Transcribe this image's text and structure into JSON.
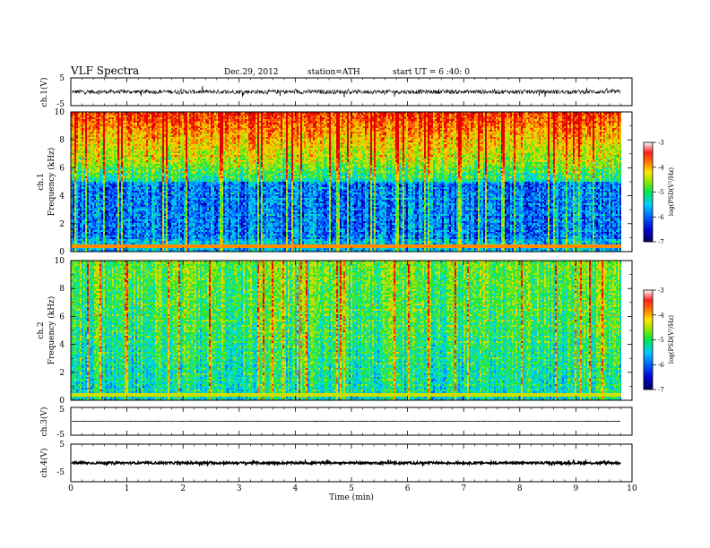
{
  "header": {
    "title": "VLF  Spectra",
    "date": "Dec.29, 2012",
    "station": "station=ATH",
    "start": "start  UT  =   6 :40: 0"
  },
  "chart_data": [
    {
      "type": "line",
      "panel": "ch1",
      "ylabel": "ch.1(V)",
      "yticks": [
        "5",
        "-5"
      ],
      "ylim": [
        -5,
        5
      ],
      "xlim": [
        0,
        10
      ],
      "signal_end_min": 9.8,
      "baseline_v": 0.0,
      "noise_amplitude_v": 1.5
    },
    {
      "type": "heatmap",
      "panel": "ch1-spectrogram",
      "ylabel_line1": "ch.1",
      "ylabel_line2": "Frequency  (kHz)",
      "yticks": [
        "10",
        "8",
        "6",
        "4",
        "2",
        "0"
      ],
      "ylim_khz": [
        0,
        10
      ],
      "xlim_min": [
        0,
        10
      ],
      "colorbar": {
        "label": "log(PSD(V²/Hz)",
        "ticks": [
          "-3",
          "-4",
          "-5",
          "-6",
          "-7"
        ],
        "range": [
          -7,
          -3
        ]
      }
    },
    {
      "type": "heatmap",
      "panel": "ch2-spectrogram",
      "ylabel_line1": "ch.2",
      "ylabel_line2": "Frequency  (kHz)",
      "yticks": [
        "10",
        "8",
        "6",
        "4",
        "2",
        "0"
      ],
      "ylim_khz": [
        0,
        10
      ],
      "xlim_min": [
        0,
        10
      ],
      "colorbar": {
        "label": "log(PSD(V²/Hz)",
        "ticks": [
          "-3",
          "-4",
          "-5",
          "-6",
          "-7"
        ],
        "range": [
          -7,
          -3
        ]
      }
    },
    {
      "type": "line",
      "panel": "ch3",
      "ylabel": "ch.3(V)",
      "yticks": [
        "5",
        "-5"
      ],
      "ylim": [
        -5,
        5
      ],
      "xlim": [
        0,
        10
      ],
      "signal_end_min": 9.8,
      "baseline_v": 0.0
    },
    {
      "type": "line",
      "panel": "ch4",
      "ylabel": "ch.4(V)",
      "yticks": [
        "5",
        "-5"
      ],
      "ylim": [
        -5,
        5
      ],
      "xlim": [
        0,
        10
      ],
      "signal_end_min": 9.8,
      "baseline_v": 0.0
    }
  ],
  "xaxis": {
    "label": "Time  (min)",
    "ticks": [
      "0",
      "1",
      "2",
      "3",
      "4",
      "5",
      "6",
      "7",
      "8",
      "9",
      "10"
    ]
  },
  "colors": {
    "axes": "#000000",
    "colormap": [
      "#000060",
      "#0000c8",
      "#0050ff",
      "#00b4ff",
      "#00e6c8",
      "#28e628",
      "#b4e600",
      "#ffd200",
      "#ff6400",
      "#e60000",
      "#ffffff"
    ]
  }
}
